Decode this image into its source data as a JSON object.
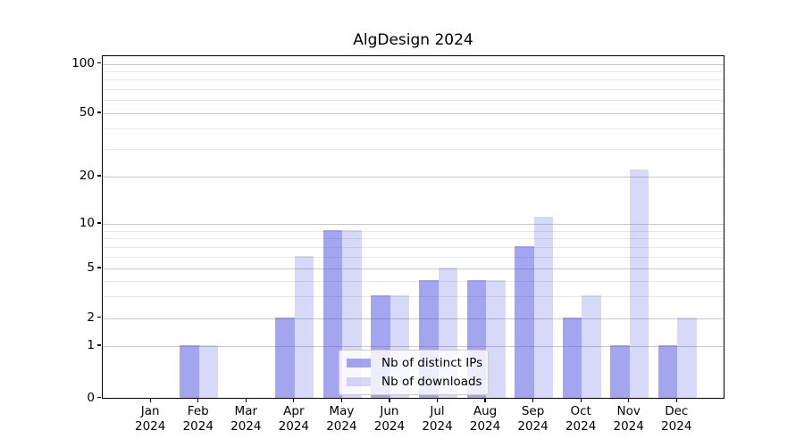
{
  "title": "AlgDesign 2024",
  "colors": {
    "bar_distinct_ips": "rgba(85,85,224,0.53)",
    "bar_downloads": "rgba(85,85,224,0.23)",
    "major_grid": "#c9c9c9",
    "minor_grid": "#e8e8e8",
    "axis": "#000000",
    "legend_border": "#cccccc",
    "legend_background": "rgba(255,255,255,0.8)"
  },
  "legend": {
    "items": [
      {
        "label": "Nb of distinct IPs",
        "color_key": "bar_distinct_ips"
      },
      {
        "label": "Nb of downloads",
        "color_key": "bar_downloads"
      }
    ]
  },
  "y_axis": {
    "ticks": [
      {
        "value": 0,
        "label": "0"
      },
      {
        "value": 1,
        "label": "1"
      },
      {
        "value": 2,
        "label": "2"
      },
      {
        "value": 5,
        "label": "5"
      },
      {
        "value": 10,
        "label": "10"
      },
      {
        "value": 20,
        "label": "20"
      },
      {
        "value": 50,
        "label": "50"
      },
      {
        "value": 100,
        "label": "100"
      }
    ],
    "minor_tick_values": [
      3,
      4,
      6,
      7,
      8,
      9,
      30,
      40,
      60,
      70,
      80,
      90
    ]
  },
  "x_axis": {
    "categories": [
      {
        "month": "Jan",
        "year": "2024"
      },
      {
        "month": "Feb",
        "year": "2024"
      },
      {
        "month": "Mar",
        "year": "2024"
      },
      {
        "month": "Apr",
        "year": "2024"
      },
      {
        "month": "May",
        "year": "2024"
      },
      {
        "month": "Jun",
        "year": "2024"
      },
      {
        "month": "Jul",
        "year": "2024"
      },
      {
        "month": "Aug",
        "year": "2024"
      },
      {
        "month": "Sep",
        "year": "2024"
      },
      {
        "month": "Oct",
        "year": "2024"
      },
      {
        "month": "Nov",
        "year": "2024"
      },
      {
        "month": "Dec",
        "year": "2024"
      }
    ]
  },
  "chart_data": {
    "type": "bar",
    "title": "AlgDesign 2024",
    "categories": [
      "Jan 2024",
      "Feb 2024",
      "Mar 2024",
      "Apr 2024",
      "May 2024",
      "Jun 2024",
      "Jul 2024",
      "Aug 2024",
      "Sep 2024",
      "Oct 2024",
      "Nov 2024",
      "Dec 2024"
    ],
    "series": [
      {
        "name": "Nb of distinct IPs",
        "values": [
          0,
          1,
          0,
          2,
          9,
          3,
          4,
          4,
          7,
          2,
          1,
          1
        ]
      },
      {
        "name": "Nb of downloads",
        "values": [
          0,
          1,
          0,
          6,
          9,
          3,
          5,
          4,
          11,
          3,
          22,
          2
        ]
      }
    ],
    "yscale": "log-like (0,1,2,5,10,20,50,100)",
    "ylim": [
      0,
      100
    ],
    "grid": true,
    "legend_position": "lower center"
  }
}
